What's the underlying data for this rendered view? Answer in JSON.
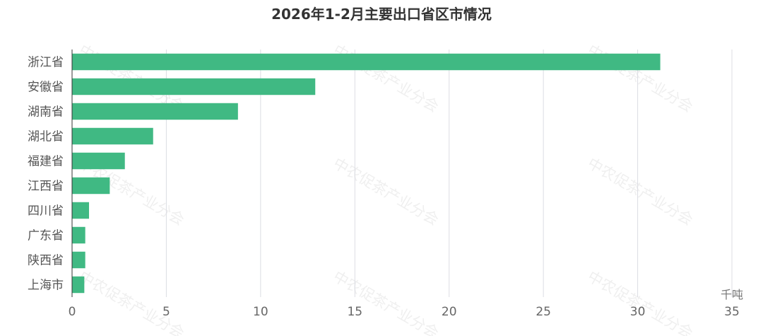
{
  "chart_data": {
    "type": "bar",
    "orientation": "horizontal",
    "title": "2026年1-2月主要出口省区市情况",
    "categories": [
      "浙江省",
      "安徽省",
      "湖南省",
      "湖北省",
      "福建省",
      "江西省",
      "四川省",
      "广东省",
      "陕西省",
      "上海市"
    ],
    "values": [
      31.2,
      12.9,
      8.8,
      4.3,
      2.8,
      2.0,
      0.9,
      0.7,
      0.7,
      0.65
    ],
    "xlim": [
      0,
      35
    ],
    "xticks": [
      0,
      5,
      10,
      15,
      20,
      25,
      30,
      35
    ],
    "x_unit": "千吨",
    "grid": true,
    "bar_color": "#40b983"
  },
  "watermark": "中农促茶产业分会"
}
